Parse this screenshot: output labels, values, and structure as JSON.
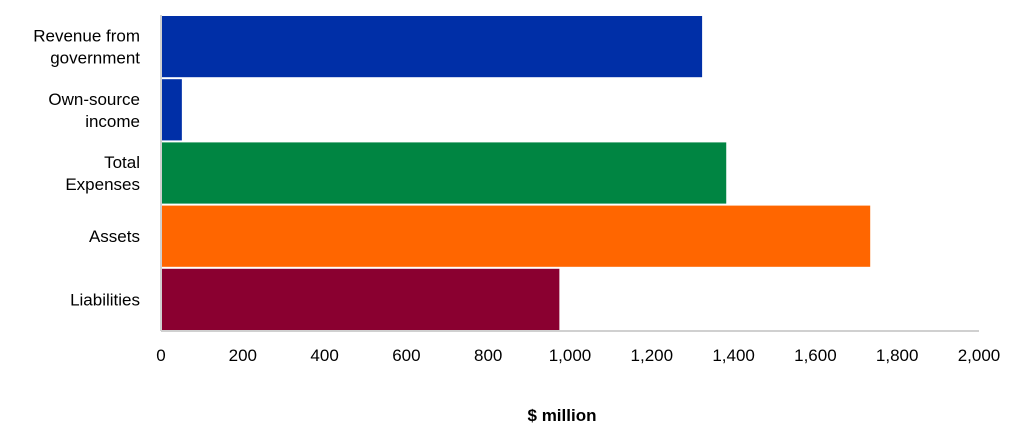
{
  "chart_data": {
    "type": "bar",
    "orientation": "horizontal",
    "title": "",
    "xlabel": "$ million",
    "ylabel": "",
    "xlim": [
      0,
      2000
    ],
    "xticks": [
      0,
      200,
      400,
      600,
      800,
      1000,
      1200,
      1400,
      1600,
      1800,
      2000
    ],
    "xtick_labels": [
      "0",
      "200",
      "400",
      "600",
      "800",
      "1,000",
      "1,200",
      "1,400",
      "1,600",
      "1,800",
      "2,000"
    ],
    "grid": false,
    "categories": [
      [
        "Revenue from",
        "government"
      ],
      [
        "Own-source",
        "income"
      ],
      [
        "Total",
        "Expenses"
      ],
      [
        "Assets"
      ],
      [
        "Liabilities"
      ]
    ],
    "values": [
      1323,
      51,
      1382,
      1734,
      974
    ],
    "colors": [
      "#002FA7",
      "#002FA7",
      "#008542",
      "#FF6600",
      "#8A0030"
    ]
  }
}
